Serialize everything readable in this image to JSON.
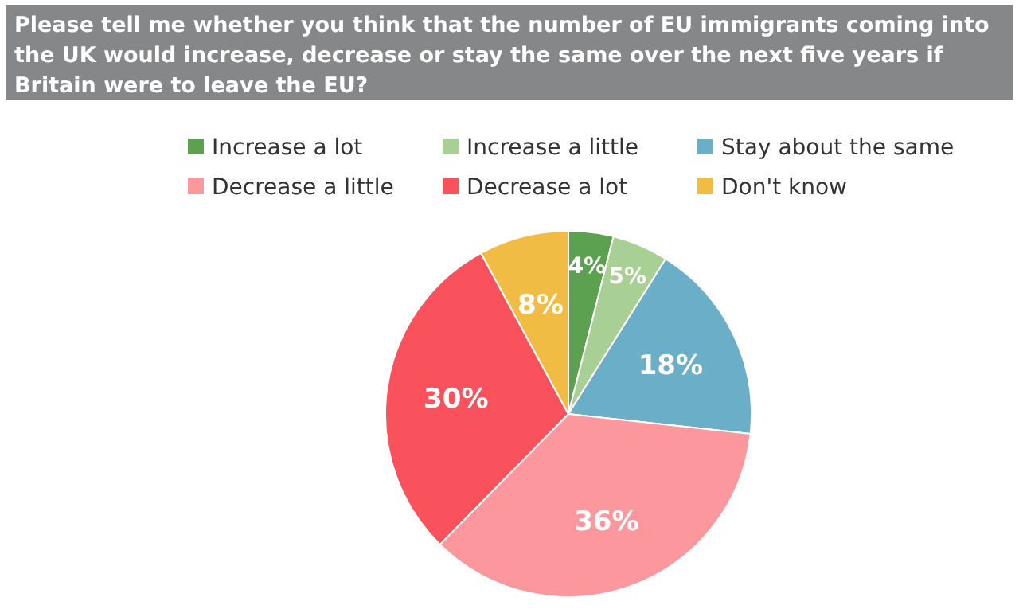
{
  "chart_data": {
    "type": "pie",
    "title": "Please tell me whether you think that the number of EU immigrants coming into the UK would increase, decrease or stay the same over the next five years if Britain were to leave the EU?",
    "categories": [
      "Increase a lot",
      "Increase a little",
      "Stay about the same",
      "Decrease a little",
      "Decrease a lot",
      "Don't know"
    ],
    "values": [
      4,
      5,
      18,
      36,
      30,
      8
    ],
    "value_labels": [
      "4%",
      "5%",
      "18%",
      "36%",
      "30%",
      "8%"
    ],
    "colors": [
      "#5ba150",
      "#a8cf94",
      "#6aaec7",
      "#fb979d",
      "#f9525c",
      "#f1bc43"
    ],
    "legend": "top"
  }
}
